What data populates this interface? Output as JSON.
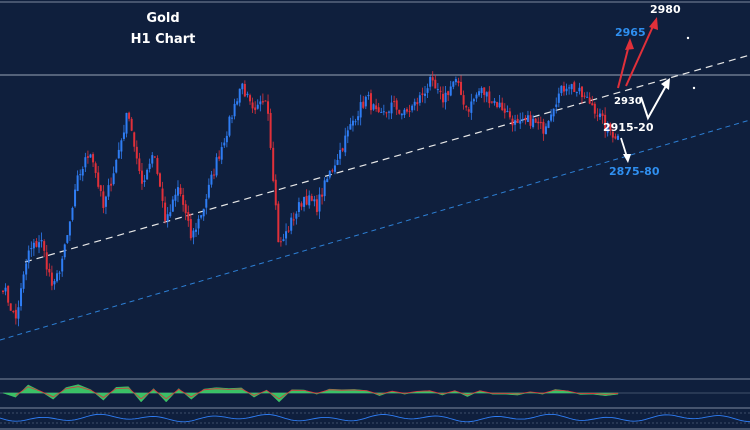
{
  "title_line1": "Gold",
  "title_line2": "H1  Chart",
  "colors": {
    "background": "#0f1f3d",
    "bull": "#2f7df4",
    "bear": "#e0303a",
    "trend_white": "#e8e8e8",
    "trend_blue": "#2d7fd4",
    "level_line": "#9aa6b8",
    "macd_fill": "#3fd26a",
    "arrow_red": "#e0303a",
    "arrow_white": "#ffffff",
    "text_white": "#ffffff",
    "text_blue": "#2f8ff0"
  },
  "annotations": {
    "t2980": "2980",
    "t2965": "2965",
    "t2930": "2930",
    "t2915": "2915-20",
    "t2875": "2875-80"
  },
  "chart_data": {
    "type": "candlestick",
    "title": "Gold H1 Chart",
    "levels": [
      2980,
      2965,
      2930,
      "2915-20",
      "2875-80"
    ],
    "path": [
      2880,
      2866,
      2893,
      2899,
      2878,
      2896,
      2924,
      2935,
      2911,
      2930,
      2951,
      2920,
      2935,
      2905,
      2920,
      2899,
      2912,
      2930,
      2945,
      2962,
      2948,
      2958,
      2895,
      2906,
      2916,
      2912,
      2925,
      2936,
      2948,
      2956,
      2947,
      2953,
      2949,
      2954,
      2962,
      2955,
      2963,
      2951,
      2959,
      2955,
      2951,
      2944,
      2947,
      2943,
      2955,
      2962,
      2957,
      2953,
      2944,
      2940
    ]
  }
}
